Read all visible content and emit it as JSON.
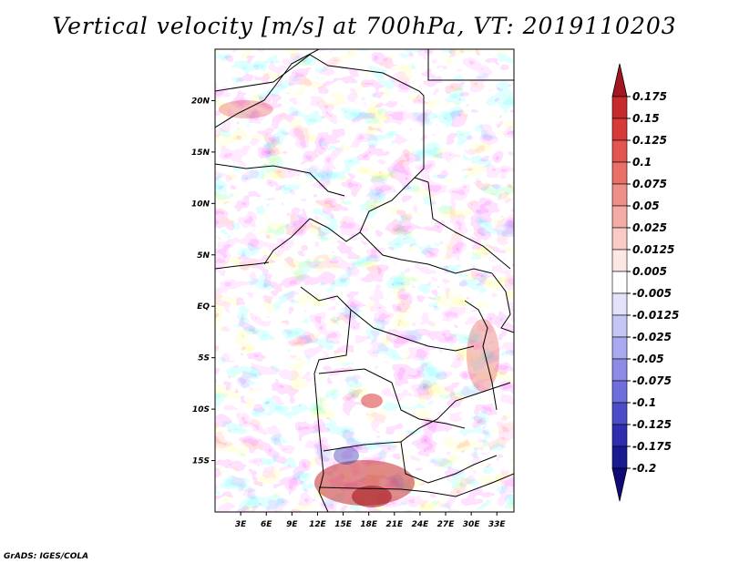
{
  "title": "Vertical velocity [m/s] at 700hPa, VT: 2019110203",
  "credit": "GrADS: IGES/COLA",
  "map": {
    "lon_range": [
      0,
      35
    ],
    "lat_range": [
      -20,
      25
    ],
    "lon_ticks": [
      {
        "value": 3,
        "label": "3E"
      },
      {
        "value": 6,
        "label": "6E"
      },
      {
        "value": 9,
        "label": "9E"
      },
      {
        "value": 12,
        "label": "12E"
      },
      {
        "value": 15,
        "label": "15E"
      },
      {
        "value": 18,
        "label": "18E"
      },
      {
        "value": 21,
        "label": "21E"
      },
      {
        "value": 24,
        "label": "24E"
      },
      {
        "value": 27,
        "label": "27E"
      },
      {
        "value": 30,
        "label": "30E"
      },
      {
        "value": 33,
        "label": "33E"
      }
    ],
    "lat_ticks": [
      {
        "value": 20,
        "label": "20N"
      },
      {
        "value": 15,
        "label": "15N"
      },
      {
        "value": 10,
        "label": "10N"
      },
      {
        "value": 5,
        "label": "5N"
      },
      {
        "value": 0,
        "label": "EQ"
      },
      {
        "value": -5,
        "label": "5S"
      },
      {
        "value": -10,
        "label": "10S"
      },
      {
        "value": -15,
        "label": "15S"
      }
    ]
  },
  "colorbar": {
    "labels": [
      "0.175",
      "0.15",
      "0.125",
      "0.1",
      "0.075",
      "0.05",
      "0.025",
      "0.0125",
      "0.005",
      "-0.005",
      "-0.0125",
      "-0.025",
      "-0.05",
      "-0.075",
      "-0.1",
      "-0.125",
      "-0.175",
      "-0.2"
    ],
    "colors": [
      "#a31820",
      "#c62a2c",
      "#d83a38",
      "#e25450",
      "#e87068",
      "#ee8f88",
      "#f4aca6",
      "#f9cbc6",
      "#fde7e4",
      "#ffffff",
      "#e2e2fb",
      "#c6c6f4",
      "#a9a9ef",
      "#8c8ce6",
      "#6e6edd",
      "#4c4cc8",
      "#2e2eae",
      "#1a1a90",
      "#100a78"
    ]
  }
}
